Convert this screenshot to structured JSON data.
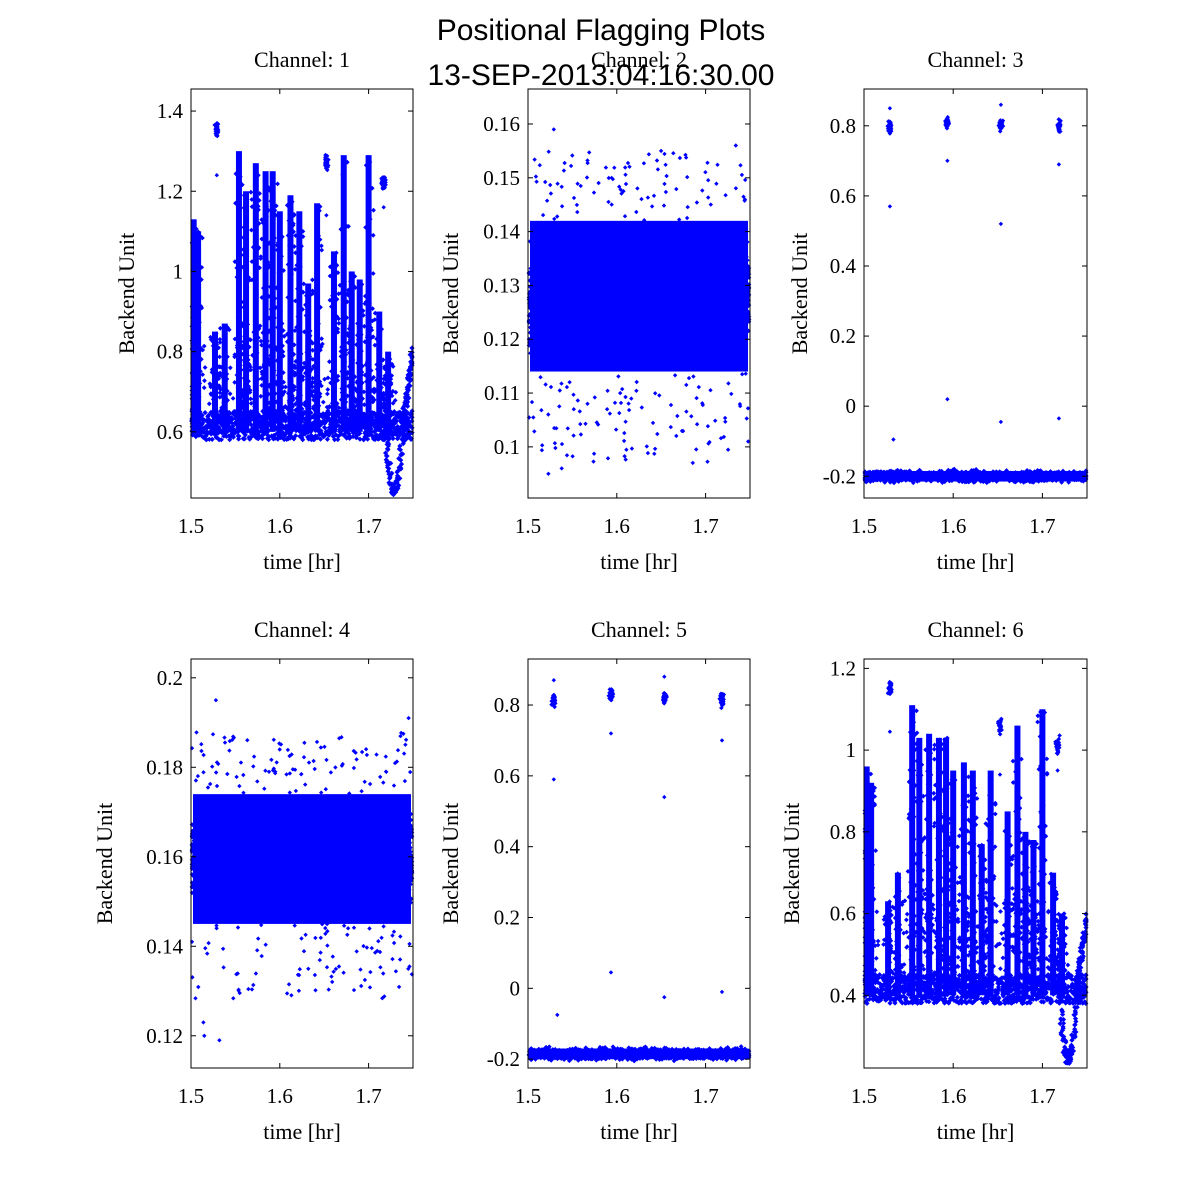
{
  "figure": {
    "title_line1": "Positional Flagging Plots",
    "title_line2": "13-SEP-2013:04:16:30.00",
    "marker_color": "#0000ff"
  },
  "chart_data": [
    {
      "type": "scatter",
      "title": "Channel: 1",
      "xlabel": "time [hr]",
      "ylabel": "Backend Unit",
      "xlim": [
        1.5,
        1.75
      ],
      "ylim": [
        0.435,
        1.455
      ],
      "xticks": [
        "1.5",
        "1.6",
        "1.7"
      ],
      "yticks": [
        "0.6",
        "0.8",
        "1",
        "1.2",
        "1.4"
      ],
      "baseline": 0.6,
      "band_low": 0.58,
      "band_high": 0.7,
      "spikes": [
        {
          "x": 1.503,
          "peak": 1.13
        },
        {
          "x": 1.508,
          "peak": 1.1
        },
        {
          "x": 1.527,
          "peak": 0.85
        },
        {
          "x": 1.538,
          "peak": 0.87
        },
        {
          "x": 1.554,
          "peak": 1.3
        },
        {
          "x": 1.562,
          "peak": 1.2
        },
        {
          "x": 1.573,
          "peak": 1.27
        },
        {
          "x": 1.584,
          "peak": 1.25
        },
        {
          "x": 1.592,
          "peak": 1.25
        },
        {
          "x": 1.6,
          "peak": 1.15
        },
        {
          "x": 1.612,
          "peak": 1.19
        },
        {
          "x": 1.622,
          "peak": 1.15
        },
        {
          "x": 1.632,
          "peak": 0.97
        },
        {
          "x": 1.642,
          "peak": 1.17
        },
        {
          "x": 1.661,
          "peak": 1.05
        },
        {
          "x": 1.672,
          "peak": 1.29
        },
        {
          "x": 1.681,
          "peak": 1.0
        },
        {
          "x": 1.69,
          "peak": 0.98
        },
        {
          "x": 1.7,
          "peak": 1.29
        },
        {
          "x": 1.712,
          "peak": 0.9
        },
        {
          "x": 1.722,
          "peak": 0.8
        }
      ],
      "clusters": [
        {
          "x": 1.529,
          "y": 1.355
        },
        {
          "x": 1.6525,
          "y": 1.27
        },
        {
          "x": 1.717,
          "y": 1.22
        }
      ],
      "outliers": [
        {
          "x": 1.529,
          "y": 1.24
        },
        {
          "x": 1.6525,
          "y": 1.14
        },
        {
          "x": 1.717,
          "y": 1.16
        }
      ],
      "dip": {
        "x": 1.728,
        "y": 0.45
      },
      "tail": {
        "x": 1.747,
        "y": 0.8
      },
      "noise": 0.0
    },
    {
      "type": "scatter",
      "title": "Channel: 2",
      "xlabel": "time [hr]",
      "ylabel": "Backend Unit",
      "xlim": [
        1.5,
        1.75
      ],
      "ylim": [
        0.0905,
        0.1665
      ],
      "xticks": [
        "1.5",
        "1.6",
        "1.7"
      ],
      "yticks": [
        "0.1",
        "0.11",
        "0.12",
        "0.13",
        "0.14",
        "0.15",
        "0.16"
      ],
      "center": 0.128,
      "core_low": 0.114,
      "core_high": 0.142,
      "noise_low": 0.097,
      "noise_high": 0.155,
      "outliers": [
        {
          "x": 1.529,
          "y": 0.159
        },
        {
          "x": 1.523,
          "y": 0.095
        },
        {
          "x": 1.538,
          "y": 0.096
        },
        {
          "x": 1.734,
          "y": 0.156
        },
        {
          "x": 1.748,
          "y": 0.101
        }
      ]
    },
    {
      "type": "scatter",
      "title": "Channel: 3",
      "xlabel": "time [hr]",
      "ylabel": "Backend Unit",
      "xlim": [
        1.5,
        1.75
      ],
      "ylim": [
        -0.262,
        0.905
      ],
      "xticks": [
        "1.5",
        "1.6",
        "1.7"
      ],
      "yticks": [
        "-0.2",
        "0",
        "0.2",
        "0.4",
        "0.6",
        "0.8"
      ],
      "band_center": -0.2,
      "band_half": 0.025,
      "clusters": [
        {
          "x": 1.529,
          "y": 0.795
        },
        {
          "x": 1.5935,
          "y": 0.81
        },
        {
          "x": 1.6535,
          "y": 0.8
        },
        {
          "x": 1.7185,
          "y": 0.8
        }
      ],
      "outliers": [
        {
          "x": 1.529,
          "y": 0.85
        },
        {
          "x": 1.529,
          "y": 0.57
        },
        {
          "x": 1.533,
          "y": -0.095
        },
        {
          "x": 1.5935,
          "y": 0.7
        },
        {
          "x": 1.5935,
          "y": 0.02
        },
        {
          "x": 1.6535,
          "y": 0.86
        },
        {
          "x": 1.6535,
          "y": 0.52
        },
        {
          "x": 1.6535,
          "y": -0.045
        },
        {
          "x": 1.7185,
          "y": 0.69
        },
        {
          "x": 1.7185,
          "y": -0.035
        }
      ]
    },
    {
      "type": "scatter",
      "title": "Channel: 4",
      "xlabel": "time [hr]",
      "ylabel": "Backend Unit",
      "xlim": [
        1.5,
        1.75
      ],
      "ylim": [
        0.1128,
        0.2042
      ],
      "xticks": [
        "1.5",
        "1.6",
        "1.7"
      ],
      "yticks": [
        "0.12",
        "0.14",
        "0.16",
        "0.18",
        "0.2"
      ],
      "center": 0.159,
      "core_low": 0.145,
      "core_high": 0.174,
      "noise_low": 0.128,
      "noise_high": 0.188,
      "outliers": [
        {
          "x": 1.528,
          "y": 0.195
        },
        {
          "x": 1.515,
          "y": 0.12
        },
        {
          "x": 1.532,
          "y": 0.119
        },
        {
          "x": 1.514,
          "y": 0.123
        },
        {
          "x": 1.745,
          "y": 0.191
        }
      ]
    },
    {
      "type": "scatter",
      "title": "Channel: 5",
      "xlabel": "time [hr]",
      "ylabel": "Backend Unit",
      "xlim": [
        1.5,
        1.75
      ],
      "ylim": [
        -0.225,
        0.93
      ],
      "xticks": [
        "1.5",
        "1.6",
        "1.7"
      ],
      "yticks": [
        "-0.2",
        "0",
        "0.2",
        "0.4",
        "0.6",
        "0.8"
      ],
      "band_center": -0.185,
      "band_half": 0.025,
      "clusters": [
        {
          "x": 1.529,
          "y": 0.815
        },
        {
          "x": 1.5935,
          "y": 0.83
        },
        {
          "x": 1.6535,
          "y": 0.82
        },
        {
          "x": 1.7185,
          "y": 0.815
        }
      ],
      "outliers": [
        {
          "x": 1.529,
          "y": 0.87
        },
        {
          "x": 1.529,
          "y": 0.59
        },
        {
          "x": 1.533,
          "y": -0.075
        },
        {
          "x": 1.5935,
          "y": 0.72
        },
        {
          "x": 1.5935,
          "y": 0.045
        },
        {
          "x": 1.6535,
          "y": 0.88
        },
        {
          "x": 1.6535,
          "y": 0.54
        },
        {
          "x": 1.6535,
          "y": -0.025
        },
        {
          "x": 1.7185,
          "y": 0.7
        },
        {
          "x": 1.7185,
          "y": -0.01
        }
      ]
    },
    {
      "type": "scatter",
      "title": "Channel: 6",
      "xlabel": "time [hr]",
      "ylabel": "Backend Unit",
      "xlim": [
        1.5,
        1.75
      ],
      "ylim": [
        0.222,
        1.223
      ],
      "xticks": [
        "1.5",
        "1.6",
        "1.7"
      ],
      "yticks": [
        "0.4",
        "0.6",
        "0.8",
        "1",
        "1.2"
      ],
      "baseline": 0.4,
      "band_low": 0.38,
      "band_high": 0.5,
      "spikes": [
        {
          "x": 1.503,
          "peak": 0.96
        },
        {
          "x": 1.508,
          "peak": 0.92
        },
        {
          "x": 1.527,
          "peak": 0.63
        },
        {
          "x": 1.538,
          "peak": 0.7
        },
        {
          "x": 1.554,
          "peak": 1.11
        },
        {
          "x": 1.562,
          "peak": 1.03
        },
        {
          "x": 1.573,
          "peak": 1.04
        },
        {
          "x": 1.584,
          "peak": 1.03
        },
        {
          "x": 1.592,
          "peak": 1.03
        },
        {
          "x": 1.6,
          "peak": 0.95
        },
        {
          "x": 1.612,
          "peak": 0.97
        },
        {
          "x": 1.622,
          "peak": 0.95
        },
        {
          "x": 1.632,
          "peak": 0.77
        },
        {
          "x": 1.642,
          "peak": 0.95
        },
        {
          "x": 1.661,
          "peak": 0.85
        },
        {
          "x": 1.672,
          "peak": 1.06
        },
        {
          "x": 1.681,
          "peak": 0.8
        },
        {
          "x": 1.69,
          "peak": 0.78
        },
        {
          "x": 1.7,
          "peak": 1.1
        },
        {
          "x": 1.712,
          "peak": 0.7
        },
        {
          "x": 1.722,
          "peak": 0.6
        }
      ],
      "clusters": [
        {
          "x": 1.529,
          "y": 1.15
        },
        {
          "x": 1.6525,
          "y": 1.06
        },
        {
          "x": 1.717,
          "y": 1.01
        }
      ],
      "outliers": [
        {
          "x": 1.529,
          "y": 1.045
        },
        {
          "x": 1.6525,
          "y": 0.94
        },
        {
          "x": 1.717,
          "y": 0.95
        }
      ],
      "dip": {
        "x": 1.728,
        "y": 0.24
      },
      "tail": {
        "x": 1.747,
        "y": 0.6
      },
      "noise": 0.0
    }
  ]
}
